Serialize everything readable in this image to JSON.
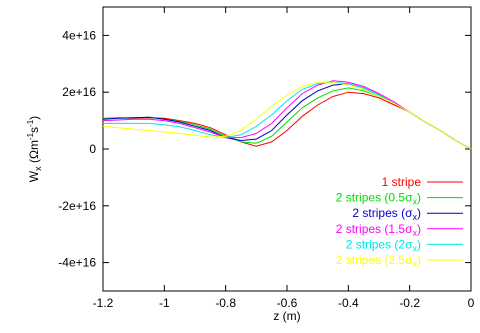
{
  "chart_data": {
    "type": "line",
    "xlabel": "z (m)",
    "ylabel": {
      "main": "W",
      "sub": "x",
      "unit_open": " (Ωm",
      "sup1": "-1",
      "mid": "s",
      "sup2": "-1",
      "unit_close": ")"
    },
    "xlim": [
      -1.2,
      0
    ],
    "ylim": [
      -5e+16,
      5e+16
    ],
    "x_ticks": [
      -1.2,
      -1,
      -0.8,
      -0.6,
      -0.4,
      -0.2,
      0
    ],
    "x_tick_labels": [
      "-1.2",
      "-1",
      "-0.8",
      "-0.6",
      "-0.4",
      "-0.2",
      "0"
    ],
    "y_ticks": [
      4e+16,
      2e+16,
      0,
      -2e+16,
      -4e+16
    ],
    "y_tick_labels": [
      "4e+16",
      "2e+16",
      "0",
      "-2e+16",
      "-4e+16"
    ],
    "grid": false,
    "legend_position": "bottom-right",
    "series": [
      {
        "name": "1 stripe",
        "name_main": "1 stripe",
        "name_sub": "",
        "name_tail": "",
        "color": "#ff0000",
        "x": [
          -1.2,
          -1.15,
          -1.1,
          -1.05,
          -1.0,
          -0.95,
          -0.9,
          -0.85,
          -0.8,
          -0.75,
          -0.7,
          -0.65,
          -0.6,
          -0.55,
          -0.5,
          -0.45,
          -0.4,
          -0.35,
          -0.3,
          -0.25,
          -0.2,
          -0.15,
          -0.1,
          -0.05,
          0
        ],
        "y": [
          1.05e+16,
          1.1e+16,
          1.08e+16,
          1.1e+16,
          1.08e+16,
          1e+16,
          9000000000000000.0,
          7500000000000000.0,
          5000000000000000.0,
          2500000000000000.0,
          1000000000000000.0,
          2500000000000000.0,
          6500000000000000.0,
          1.15e+16,
          1.55e+16,
          1.85e+16,
          2e+16,
          1.95e+16,
          1.8e+16,
          1.55e+16,
          1.3e+16,
          9500000000000000.0,
          6500000000000000.0,
          3000000000000000.0,
          0
        ]
      },
      {
        "name": "2 stripes (0.5σx)",
        "name_main": "2 stripes (0.5σ",
        "name_sub": "x",
        "name_tail": ")",
        "color": "#00dd00",
        "x": [
          -1.2,
          -1.15,
          -1.1,
          -1.05,
          -1.0,
          -0.95,
          -0.9,
          -0.85,
          -0.8,
          -0.75,
          -0.7,
          -0.65,
          -0.6,
          -0.55,
          -0.5,
          -0.45,
          -0.4,
          -0.35,
          -0.3,
          -0.25,
          -0.2,
          -0.15,
          -0.1,
          -0.05,
          0
        ],
        "y": [
          1.08e+16,
          1.1e+16,
          1.1e+16,
          1.12e+16,
          1.05e+16,
          9800000000000000.0,
          8500000000000000.0,
          7000000000000000.0,
          4500000000000000.0,
          2500000000000000.0,
          2000000000000000.0,
          4500000000000000.0,
          9500000000000000.0,
          1.45e+16,
          1.8e+16,
          2.05e+16,
          2.15e+16,
          2.05e+16,
          1.85e+16,
          1.6e+16,
          1.3e+16,
          9500000000000000.0,
          6500000000000000.0,
          3000000000000000.0,
          0
        ]
      },
      {
        "name": "2 stripes (σx)",
        "name_main": "2 stripes (σ",
        "name_sub": "x",
        "name_tail": ")",
        "color": "#0000cc",
        "x": [
          -1.2,
          -1.15,
          -1.1,
          -1.05,
          -1.0,
          -0.95,
          -0.9,
          -0.85,
          -0.8,
          -0.75,
          -0.7,
          -0.65,
          -0.6,
          -0.55,
          -0.5,
          -0.45,
          -0.4,
          -0.35,
          -0.3,
          -0.25,
          -0.2,
          -0.15,
          -0.1,
          -0.05,
          0
        ],
        "y": [
          1.05e+16,
          1.08e+16,
          1.1e+16,
          1.12e+16,
          1.05e+16,
          9500000000000000.0,
          8000000000000000.0,
          6500000000000000.0,
          4000000000000000.0,
          3000000000000000.0,
          3500000000000000.0,
          6500000000000000.0,
          1.2e+16,
          1.7e+16,
          2.05e+16,
          2.25e+16,
          2.3e+16,
          2.15e+16,
          1.9e+16,
          1.6e+16,
          1.3e+16,
          9500000000000000.0,
          6500000000000000.0,
          3000000000000000.0,
          0
        ]
      },
      {
        "name": "2 stripes (1.5σx)",
        "name_main": "2 stripes (1.5σ",
        "name_sub": "x",
        "name_tail": ")",
        "color": "#ff00ff",
        "x": [
          -1.2,
          -1.15,
          -1.1,
          -1.05,
          -1.0,
          -0.95,
          -0.9,
          -0.85,
          -0.8,
          -0.75,
          -0.7,
          -0.65,
          -0.6,
          -0.55,
          -0.5,
          -0.45,
          -0.4,
          -0.35,
          -0.3,
          -0.25,
          -0.2,
          -0.15,
          -0.1,
          -0.05,
          0
        ],
        "y": [
          1e+16,
          1.02e+16,
          1.05e+16,
          1.05e+16,
          1e+16,
          9000000000000000.0,
          7500000000000000.0,
          6000000000000000.0,
          4000000000000000.0,
          4000000000000000.0,
          5500000000000000.0,
          9000000000000000.0,
          1.45e+16,
          1.95e+16,
          2.25e+16,
          2.4e+16,
          2.35e+16,
          2.2e+16,
          1.95e+16,
          1.65e+16,
          1.3e+16,
          9500000000000000.0,
          6500000000000000.0,
          3000000000000000.0,
          0
        ]
      },
      {
        "name": "2 stripes (2σx)",
        "name_main": "2 stripes (2σ",
        "name_sub": "x",
        "name_tail": ")",
        "color": "#00e5e5",
        "x": [
          -1.2,
          -1.15,
          -1.1,
          -1.05,
          -1.0,
          -0.95,
          -0.9,
          -0.85,
          -0.8,
          -0.75,
          -0.7,
          -0.65,
          -0.6,
          -0.55,
          -0.5,
          -0.45,
          -0.4,
          -0.35,
          -0.3,
          -0.25,
          -0.2,
          -0.15,
          -0.1,
          -0.05,
          0
        ],
        "y": [
          9000000000000000.0,
          9000000000000000.0,
          9000000000000000.0,
          9000000000000000.0,
          8500000000000000.0,
          7800000000000000.0,
          6500000000000000.0,
          5000000000000000.0,
          4000000000000000.0,
          5000000000000000.0,
          8000000000000000.0,
          1.2e+16,
          1.7e+16,
          2.1e+16,
          2.3e+16,
          2.35e+16,
          2.3e+16,
          2.15e+16,
          1.9e+16,
          1.6e+16,
          1.3e+16,
          9500000000000000.0,
          6500000000000000.0,
          3000000000000000.0,
          0
        ]
      },
      {
        "name": "2 stripes (2.5σx)",
        "name_main": "2 stripes (2.5σ",
        "name_sub": "x",
        "name_tail": ")",
        "color": "#ffff00",
        "x": [
          -1.2,
          -1.15,
          -1.1,
          -1.05,
          -1.0,
          -0.95,
          -0.9,
          -0.85,
          -0.8,
          -0.75,
          -0.7,
          -0.65,
          -0.6,
          -0.55,
          -0.5,
          -0.45,
          -0.4,
          -0.35,
          -0.3,
          -0.25,
          -0.2,
          -0.15,
          -0.1,
          -0.05,
          0
        ],
        "y": [
          8000000000000000.0,
          7500000000000000.0,
          7000000000000000.0,
          6500000000000000.0,
          6000000000000000.0,
          5500000000000000.0,
          4800000000000000.0,
          4200000000000000.0,
          4500000000000000.0,
          6500000000000000.0,
          1.05e+16,
          1.5e+16,
          1.9e+16,
          2.2e+16,
          2.35e+16,
          2.35e+16,
          2.25e+16,
          2.1e+16,
          1.85e+16,
          1.6e+16,
          1.3e+16,
          9500000000000000.0,
          6500000000000000.0,
          3000000000000000.0,
          0
        ]
      }
    ]
  }
}
